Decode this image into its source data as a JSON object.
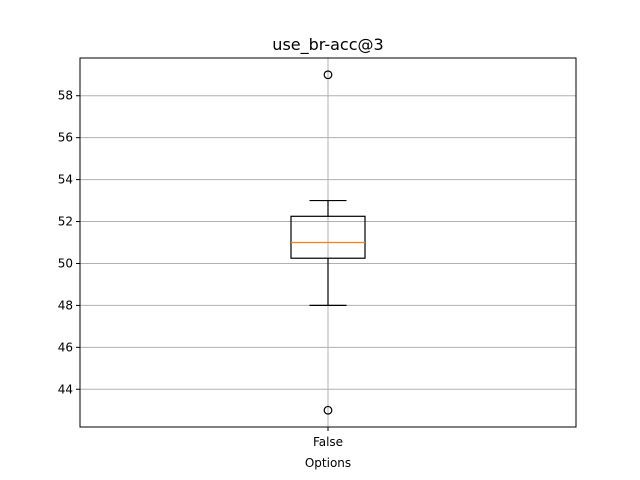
{
  "chart_data": {
    "type": "box",
    "title": "use_br-acc@3",
    "xlabel": "Options",
    "ylabel": "",
    "categories": [
      "False"
    ],
    "yticks": [
      44,
      46,
      48,
      50,
      52,
      54,
      56,
      58
    ],
    "ylim": [
      42.2,
      59.8
    ],
    "grid": true,
    "boxes": [
      {
        "category": "False",
        "whisker_low": 48,
        "q1": 50.25,
        "median": 51,
        "q3": 52.25,
        "whisker_high": 53,
        "outliers": [
          59,
          43
        ]
      }
    ],
    "colors": {
      "box": "#000000",
      "median": "#ff7f0e",
      "grid": "#b0b0b0"
    }
  }
}
